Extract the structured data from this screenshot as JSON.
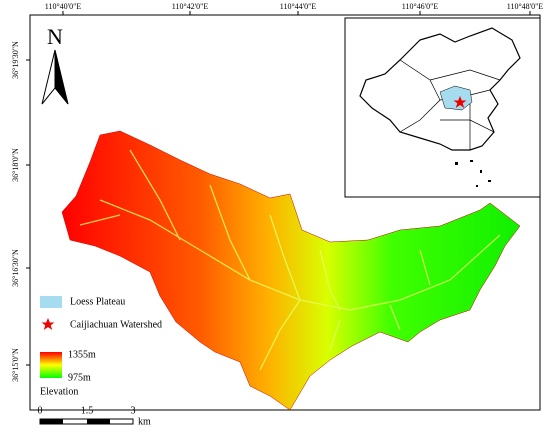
{
  "frame": {
    "top_labels": [
      "110°40'0\"E",
      "110°42'0\"E",
      "110°44'0\"E",
      "110°46'0\"E",
      "110°48'0\"E"
    ],
    "left_labels": [
      "36°19'30\"N",
      "36°18'0\"N",
      "36°16'30\"N",
      "36°15'0\"N"
    ]
  },
  "north": "N",
  "legend": {
    "items": [
      "Loess Plateau",
      "Caijiachuan Watershed"
    ],
    "elevation_max": "1355m",
    "elevation_min": "975m",
    "elevation_title": "Elevation"
  },
  "scale_bar": {
    "labels": [
      0,
      1.5,
      3
    ],
    "unit": "km"
  }
}
